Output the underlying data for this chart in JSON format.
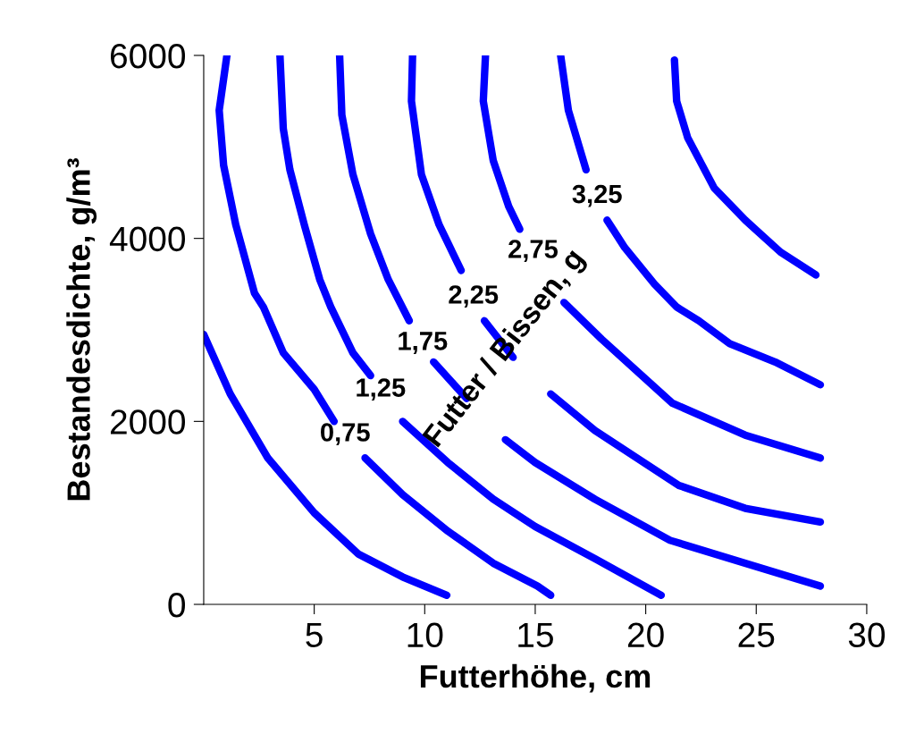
{
  "chart_data": {
    "type": "line",
    "xlabel": "Futterhöhe, cm",
    "ylabel": "Bestandesdichte, g/m³",
    "xlim": [
      0,
      30
    ],
    "ylim": [
      0,
      6000
    ],
    "xticks": [
      5,
      10,
      15,
      20,
      25,
      30
    ],
    "yticks": [
      0,
      2000,
      4000,
      6000
    ],
    "grid": false,
    "legend": false,
    "marker": "none",
    "line_style": "solid",
    "series": [
      {
        "color": "#0000ff",
        "x": [
          0,
          1.2,
          2.9,
          5.0,
          7.0,
          9.0,
          11.0
        ],
        "values": [
          2950,
          2300,
          1600,
          1000,
          550,
          300,
          100
        ]
      },
      {
        "name": "0,75",
        "color": "#0000ff",
        "x": [
          1.05,
          0.7,
          0.9,
          1.45,
          2.3,
          2.7,
          3.6,
          5.0,
          5.9,
          6.4,
          7.3,
          9.0,
          11.05,
          13.1,
          15.1,
          15.7
        ],
        "values": [
          6000,
          5400,
          4800,
          4150,
          3400,
          3250,
          2750,
          2350,
          2000,
          null,
          1600,
          1200,
          800,
          450,
          200,
          100
        ]
      },
      {
        "name": "1,25",
        "color": "#0000ff",
        "x": [
          3.45,
          3.6,
          3.9,
          4.55,
          5.25,
          5.75,
          6.75,
          7.55,
          8.0,
          9.0,
          11.05,
          13.1,
          15.0,
          17.7,
          20.7
        ],
        "values": [
          6000,
          5200,
          4750,
          4150,
          3550,
          3250,
          2750,
          2500,
          null,
          2000,
          1550,
          1150,
          850,
          500,
          100
        ]
      },
      {
        "name": "1,75",
        "color": "#0000ff",
        "x": [
          6.15,
          6.25,
          6.75,
          7.55,
          8.35,
          9.3,
          9.9,
          10.4,
          11.9,
          12.9,
          13.65,
          15.0,
          17.7,
          21.1,
          24.5,
          27.9
        ],
        "values": [
          6000,
          5350,
          4700,
          4050,
          3550,
          3100,
          null,
          2650,
          2250,
          null,
          1800,
          1550,
          1150,
          700,
          450,
          200
        ]
      },
      {
        "name": "2,25",
        "color": "#0000ff",
        "x": [
          9.45,
          9.4,
          9.85,
          10.65,
          11.65,
          12.2,
          12.7,
          14.0,
          14.8,
          15.7,
          17.7,
          21.5,
          24.5,
          27.9
        ],
        "values": [
          6000,
          5500,
          4700,
          4150,
          3650,
          null,
          3100,
          2700,
          null,
          2300,
          1900,
          1300,
          1050,
          900
        ]
      },
      {
        "name": "2,75",
        "color": "#0000ff",
        "x": [
          12.75,
          12.65,
          13.1,
          13.8,
          14.3,
          14.9,
          15.4,
          16.3,
          18.0,
          21.2,
          24.5,
          27.9
        ],
        "values": [
          6000,
          5500,
          4850,
          4350,
          4100,
          null,
          null,
          3300,
          2900,
          2200,
          1850,
          1600
        ]
      },
      {
        "name": "3,25",
        "color": "#0000ff",
        "x": [
          16.15,
          16.5,
          17.3,
          17.8,
          18.25,
          19.05,
          20.4,
          21.4,
          22.4,
          23.8,
          25.85,
          27.9
        ],
        "values": [
          6000,
          5400,
          4750,
          null,
          4200,
          3900,
          3500,
          3250,
          3100,
          2850,
          2650,
          2400
        ]
      },
      {
        "color": "#0000ff",
        "x": [
          21.3,
          21.4,
          21.9,
          23.1,
          24.5,
          26.1,
          27.7
        ],
        "values": [
          5950,
          5500,
          5100,
          4550,
          4200,
          3850,
          3600
        ]
      }
    ],
    "annotations": [
      "Futter / Bissen, g"
    ]
  }
}
